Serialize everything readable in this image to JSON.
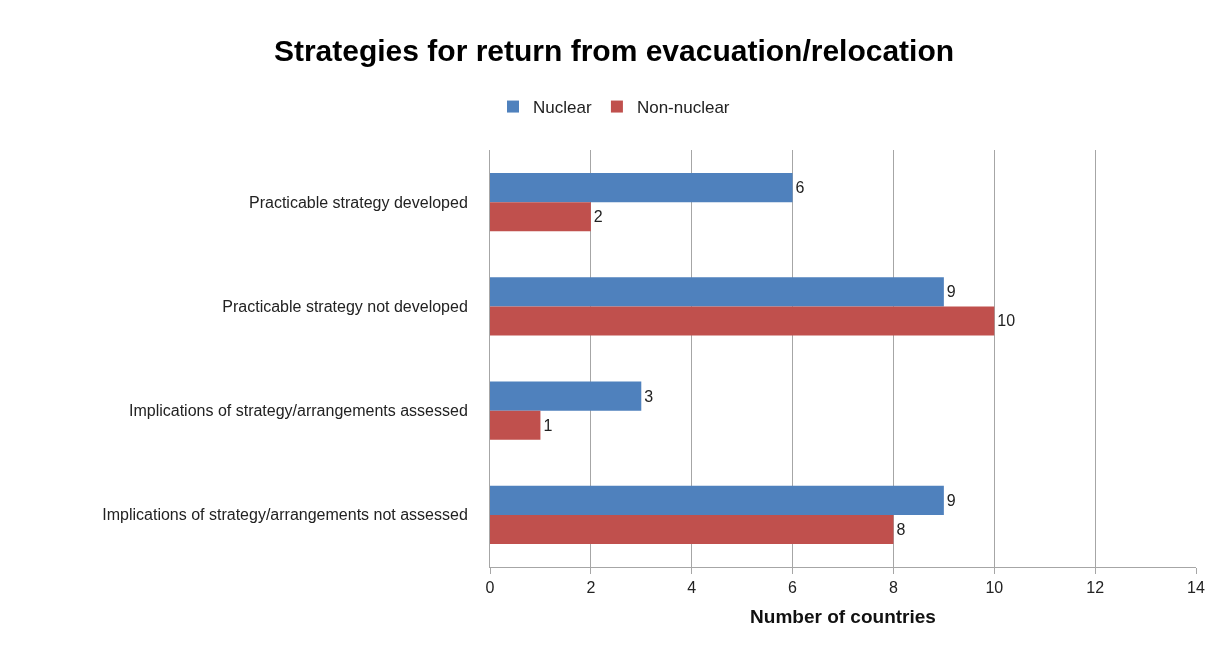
{
  "chart_data": {
    "type": "bar",
    "orientation": "horizontal",
    "title": "Strategies for return from evacuation/relocation",
    "xlabel": "Number of countries",
    "categories": [
      "Practicable strategy developed",
      "Practicable strategy not developed",
      "Implications of strategy/arrangements assessed",
      "Implications of strategy/arrangements not assessed"
    ],
    "series": [
      {
        "name": "Nuclear",
        "color": "#4f81bd",
        "values": [
          6,
          9,
          3,
          9
        ]
      },
      {
        "name": "Non-nuclear",
        "color": "#c0504d",
        "values": [
          2,
          10,
          1,
          8
        ]
      }
    ],
    "xlim": [
      0,
      14
    ],
    "xticks": [
      0,
      2,
      4,
      6,
      8,
      10,
      12,
      14
    ],
    "grid": "x",
    "legend": "top",
    "data_labels": true
  }
}
